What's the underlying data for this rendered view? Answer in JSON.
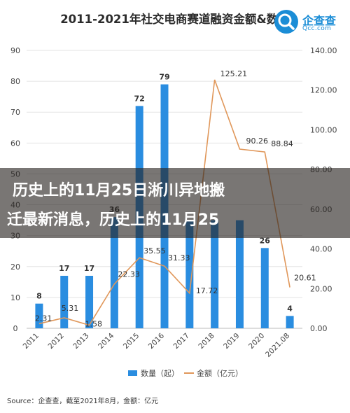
{
  "overlay": {
    "line1": "历史上的11月25日淅川异地搬",
    "line2": "迁最新消息，历史上的11月25"
  },
  "logo": {
    "name": "企查查",
    "url": "Qcc.com"
  },
  "source": "Source：企查查，截至2021年8月，金额：亿元",
  "chart_data": {
    "type": "bar",
    "title": "2011-2021年社交电商赛道融资金额&数量",
    "categories": [
      "2011",
      "2012",
      "2013",
      "2014",
      "2015",
      "2016",
      "2017",
      "2018",
      "2019",
      "2020",
      "2021.08"
    ],
    "series": [
      {
        "name": "数量（起）",
        "type": "bar",
        "axis": "left",
        "color": "#2a8de0",
        "values": [
          8,
          17,
          17,
          36,
          72,
          79,
          35,
          35,
          35,
          26,
          4
        ],
        "labels": [
          "8",
          "17",
          "17",
          "36",
          "72",
          "79",
          "",
          "",
          "",
          "26",
          "4"
        ]
      },
      {
        "name": "金额（亿元）",
        "type": "line",
        "axis": "right",
        "color": "#e0975a",
        "values": [
          2.31,
          5.31,
          1.58,
          22.33,
          35.55,
          31.33,
          17.72,
          125.21,
          90.26,
          88.84,
          20.61
        ],
        "labels": [
          "2.31",
          "5.31",
          "1.58",
          "22.33",
          "35.55",
          "31.33",
          "17.72",
          "125.21",
          "90.26",
          "88.84",
          "20.61"
        ]
      }
    ],
    "y_left": {
      "min": 0,
      "max": 90,
      "ticks": [
        "0",
        "10",
        "20",
        "30",
        "40",
        "50",
        "60",
        "70",
        "80",
        "90"
      ]
    },
    "y_right": {
      "min": 0,
      "max": 140,
      "ticks": [
        "0.00",
        "20.00",
        "40.00",
        "60.00",
        "80.00",
        "100.00",
        "120.00",
        "140.00"
      ]
    },
    "grid": true,
    "legend": "bottom"
  }
}
